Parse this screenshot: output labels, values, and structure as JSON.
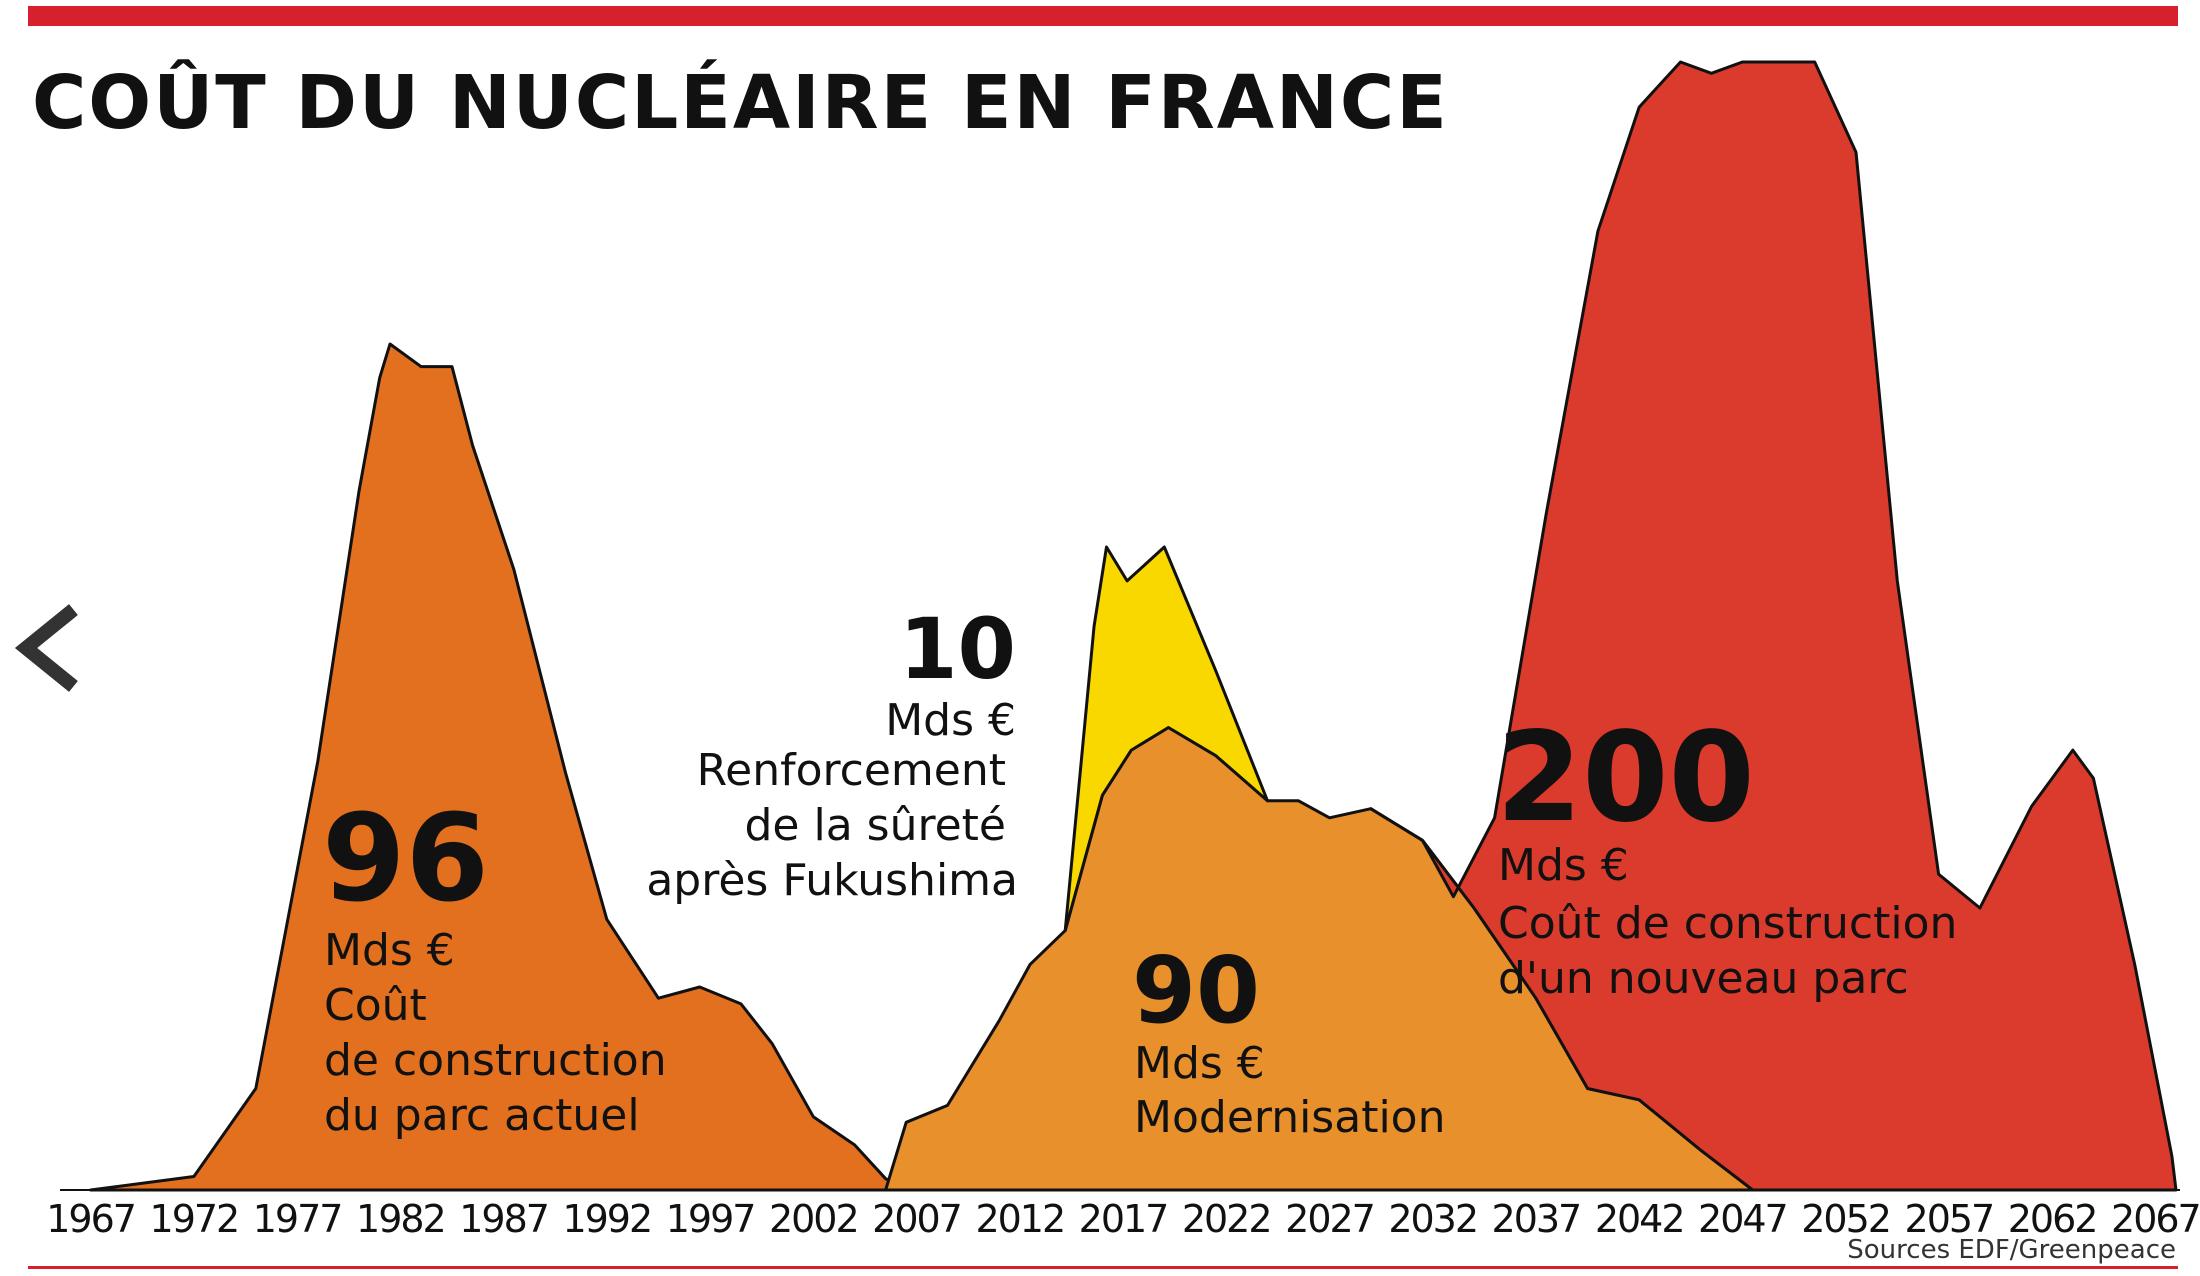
{
  "chart_data": {
    "type": "area",
    "title": "COÛT DU NUCLÉAIRE EN FRANCE",
    "source": "Sources EDF/Greenpeace",
    "x_ticks": [
      1967,
      1972,
      1977,
      1982,
      1987,
      1992,
      1997,
      2002,
      2007,
      2012,
      2017,
      2022,
      2027,
      2032,
      2037,
      2042,
      2047,
      2052,
      2057,
      2062,
      2067
    ],
    "x_range": [
      1966,
      2068
    ],
    "y_axis_shown": false,
    "grid": false,
    "colors": {
      "construction_actuel": "#e2701f",
      "fukushima": "#f9d800",
      "modernisation": "#e8902c",
      "nouveau_parc": "#db3b2c",
      "accent_bar": "#d6202b"
    },
    "series": [
      {
        "key": "construction_actuel",
        "color": "#e2701f",
        "total": "96",
        "unit": "Mds €",
        "label_lines": [
          "Coût",
          "de construction",
          "du parc actuel"
        ],
        "points": [
          [
            1967,
            0
          ],
          [
            1972,
            1.2
          ],
          [
            1975,
            9
          ],
          [
            1978,
            38
          ],
          [
            1980,
            62
          ],
          [
            1981,
            72
          ],
          [
            1981.5,
            75
          ],
          [
            1983,
            73
          ],
          [
            1984.5,
            73
          ],
          [
            1985.5,
            66
          ],
          [
            1987.5,
            55
          ],
          [
            1990,
            37
          ],
          [
            1992,
            24
          ],
          [
            1994.5,
            17
          ],
          [
            1996.5,
            18
          ],
          [
            1998.5,
            16.5
          ],
          [
            2000,
            13
          ],
          [
            2002,
            6.5
          ],
          [
            2004,
            4
          ],
          [
            2005.5,
            1
          ],
          [
            2006.5,
            0
          ]
        ]
      },
      {
        "key": "fukushima",
        "color": "#f9d800",
        "total": "10",
        "unit": "Mds €",
        "label_lines": [
          "Renforcement",
          "de la sûreté",
          "après Fukushima"
        ],
        "points": [
          [
            2014.2,
            23
          ],
          [
            2015.6,
            50
          ],
          [
            2016.2,
            57
          ],
          [
            2017.2,
            54
          ],
          [
            2019,
            57
          ],
          [
            2021.5,
            46
          ],
          [
            2024,
            34.5
          ],
          [
            2021.5,
            38.5
          ],
          [
            2019.2,
            41
          ],
          [
            2017.4,
            39
          ],
          [
            2016,
            35
          ],
          [
            2014.2,
            23
          ]
        ]
      },
      {
        "key": "modernisation",
        "color": "#e8902c",
        "total": "90",
        "unit": "Mds €",
        "label_lines": [
          "Modernisation"
        ],
        "points": [
          [
            2005.5,
            0
          ],
          [
            2006.5,
            6
          ],
          [
            2008.5,
            7.5
          ],
          [
            2011,
            15
          ],
          [
            2012.5,
            20
          ],
          [
            2014.2,
            23
          ],
          [
            2016,
            35
          ],
          [
            2017.4,
            39
          ],
          [
            2019.2,
            41
          ],
          [
            2021.5,
            38.5
          ],
          [
            2024,
            34.5
          ],
          [
            2025.5,
            34.5
          ],
          [
            2027,
            33
          ],
          [
            2029,
            33.8
          ],
          [
            2031.5,
            31
          ],
          [
            2034,
            25
          ],
          [
            2037,
            17
          ],
          [
            2039.5,
            9
          ],
          [
            2042,
            8
          ],
          [
            2045,
            3.5
          ],
          [
            2048,
            0
          ]
        ]
      },
      {
        "key": "nouveau_parc",
        "color": "#db3b2c",
        "total": "200",
        "unit": "Mds €",
        "label_lines": [
          "Coût de construction",
          "d'un nouveau parc"
        ],
        "points": [
          [
            2029,
            33.8
          ],
          [
            2031.5,
            31
          ],
          [
            2033,
            26
          ],
          [
            2035,
            33
          ],
          [
            2037.5,
            60
          ],
          [
            2040,
            85
          ],
          [
            2042,
            96
          ],
          [
            2044,
            100
          ],
          [
            2045.5,
            99
          ],
          [
            2047,
            100
          ],
          [
            2049,
            100
          ],
          [
            2050.5,
            100
          ],
          [
            2052.5,
            92
          ],
          [
            2054.5,
            54
          ],
          [
            2056.5,
            28
          ],
          [
            2058.5,
            25
          ],
          [
            2061,
            34
          ],
          [
            2063,
            39
          ],
          [
            2064,
            36.5
          ],
          [
            2066,
            20
          ],
          [
            2067.8,
            3
          ],
          [
            2068,
            0
          ],
          [
            2047.5,
            0
          ],
          [
            2045,
            3.5
          ],
          [
            2042,
            8
          ],
          [
            2039.5,
            9
          ],
          [
            2037,
            17
          ],
          [
            2034,
            25
          ],
          [
            2031.5,
            31
          ]
        ]
      }
    ]
  }
}
